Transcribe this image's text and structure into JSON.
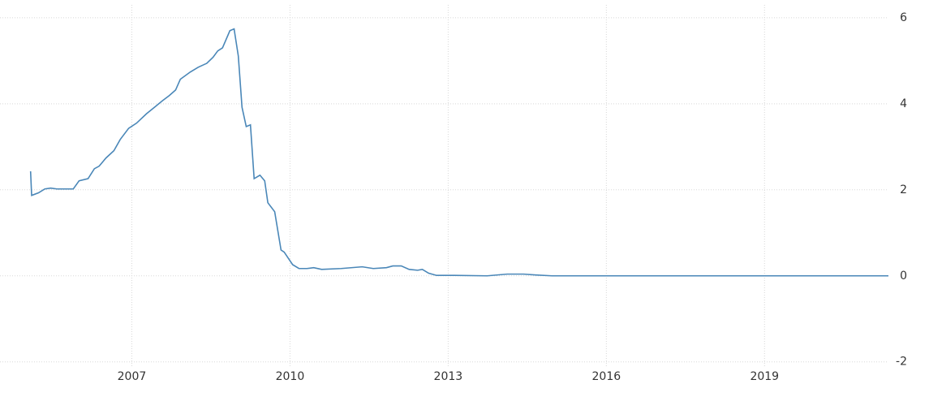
{
  "chart_data": {
    "type": "line",
    "x": [
      2005.08,
      2005.1,
      2005.23,
      2005.35,
      2005.46,
      2005.58,
      2005.89,
      2006.0,
      2006.17,
      2006.29,
      2006.38,
      2006.51,
      2006.66,
      2006.78,
      2006.94,
      2007.09,
      2007.28,
      2007.43,
      2007.58,
      2007.71,
      2007.83,
      2007.92,
      2008.11,
      2008.26,
      2008.42,
      2008.54,
      2008.63,
      2008.72,
      2008.86,
      2008.94,
      2009.02,
      2009.09,
      2009.17,
      2009.25,
      2009.32,
      2009.43,
      2009.52,
      2009.58,
      2009.71,
      2009.83,
      2009.89,
      2010.05,
      2010.17,
      2010.32,
      2010.45,
      2010.6,
      2010.97,
      2011.37,
      2011.58,
      2011.83,
      2011.95,
      2012.11,
      2012.26,
      2012.42,
      2012.51,
      2012.63,
      2012.78,
      2013.12,
      2013.74,
      2014.12,
      2014.43,
      2014.66,
      2014.97,
      2016.05,
      2021.35
    ],
    "series": [
      {
        "color": "#4a87b8",
        "values": [
          2.43,
          1.87,
          1.93,
          2.02,
          2.04,
          2.02,
          2.02,
          2.21,
          2.26,
          2.49,
          2.55,
          2.74,
          2.91,
          3.17,
          3.43,
          3.55,
          3.77,
          3.92,
          4.07,
          4.19,
          4.32,
          4.57,
          4.74,
          4.85,
          4.94,
          5.08,
          5.23,
          5.3,
          5.7,
          5.74,
          5.11,
          3.92,
          3.47,
          3.51,
          2.26,
          2.34,
          2.21,
          1.7,
          1.49,
          0.6,
          0.55,
          0.26,
          0.17,
          0.17,
          0.19,
          0.15,
          0.17,
          0.21,
          0.17,
          0.19,
          0.23,
          0.23,
          0.15,
          0.13,
          0.15,
          0.06,
          0.01,
          0.01,
          0,
          0.04,
          0.04,
          0.02,
          0,
          0,
          0
        ]
      }
    ],
    "xlim": [
      2004.5,
      2021.35
    ],
    "xticks": [
      2007,
      2010,
      2013,
      2016,
      2019
    ],
    "ylim": [
      -2.1,
      6.3
    ],
    "yticks": [
      -2,
      0,
      2,
      4,
      6
    ],
    "grid": true
  }
}
